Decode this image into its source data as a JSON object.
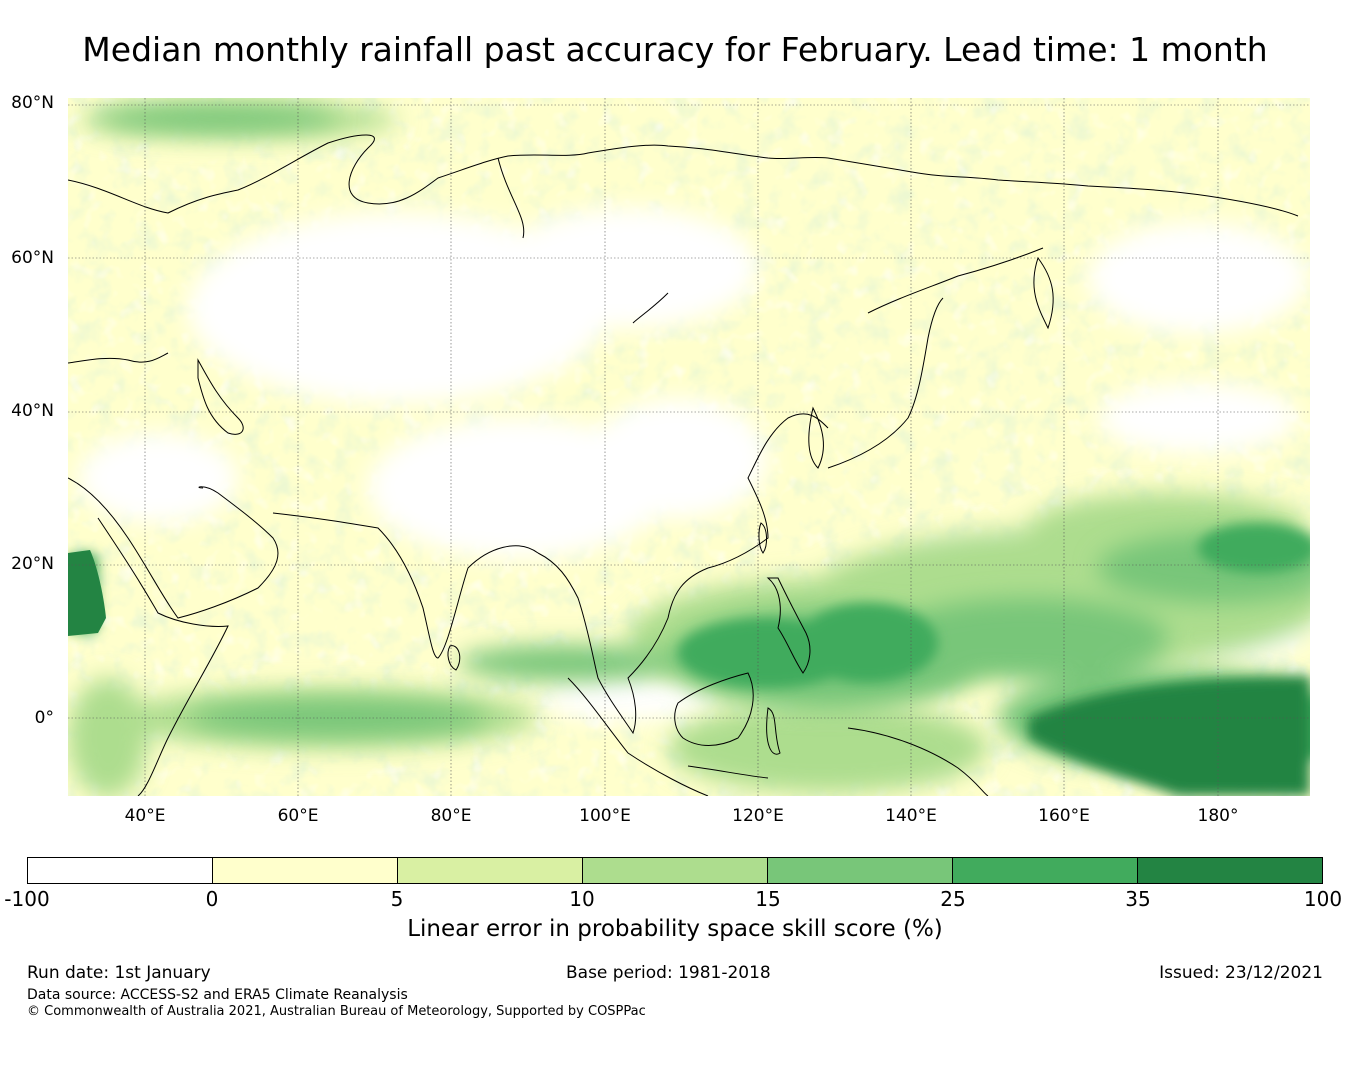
{
  "title": "Median monthly rainfall past accuracy for February. Lead time: 1 month",
  "map": {
    "region": "Asia, Indian Ocean and western Pacific",
    "lat_labels": [
      "80°N",
      "60°N",
      "40°N",
      "20°N",
      "0°"
    ],
    "lon_labels": [
      "40°E",
      "60°E",
      "80°E",
      "100°E",
      "120°E",
      "140°E",
      "160°E",
      "180°"
    ],
    "lon_range": [
      30,
      192
    ],
    "lat_range": [
      -10,
      81
    ]
  },
  "legend": {
    "ticks": [
      "-100",
      "0",
      "5",
      "10",
      "15",
      "25",
      "35",
      "100"
    ],
    "colors": [
      "#ffffff",
      "#ffffcc",
      "#d9f0a3",
      "#addd8e",
      "#78c679",
      "#41ab5d",
      "#238443"
    ],
    "label": "Linear error in probability space skill score (%)"
  },
  "footer": {
    "run_date": "Run date: 1st January",
    "base_period": "Base period: 1981-2018",
    "issued": "Issued: 23/12/2021",
    "data_source": "Data source: ACCESS-S2 and ERA5 Climate Reanalysis",
    "copyright": "© Commonwealth of Australia 2021, Australian Bureau of Meteorology, Supported by COSPPac"
  }
}
